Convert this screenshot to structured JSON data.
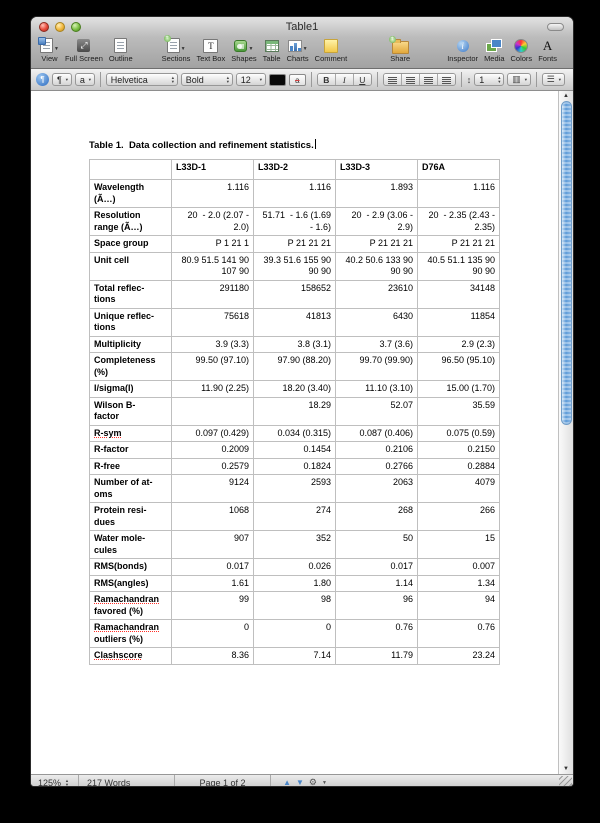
{
  "window": {
    "title": "Table1"
  },
  "toolbar": {
    "items": [
      {
        "label": "View",
        "icon": "view-icon",
        "has_menu": true
      },
      {
        "label": "Full Screen",
        "icon": "full-screen-icon",
        "has_menu": false
      },
      {
        "label": "Outline",
        "icon": "outline-icon",
        "has_menu": false
      },
      {
        "label": "Sections",
        "icon": "sections-icon",
        "has_menu": true
      },
      {
        "label": "Text Box",
        "icon": "text-box-icon",
        "has_menu": false
      },
      {
        "label": "Shapes",
        "icon": "shapes-icon",
        "has_menu": true
      },
      {
        "label": "Table",
        "icon": "table-icon",
        "has_menu": false
      },
      {
        "label": "Charts",
        "icon": "charts-icon",
        "has_menu": true
      },
      {
        "label": "Comment",
        "icon": "comment-icon",
        "has_menu": false
      },
      {
        "label": "Share",
        "icon": "share-icon",
        "has_menu": false
      },
      {
        "label": "Inspector",
        "icon": "inspector-icon",
        "has_menu": false
      },
      {
        "label": "Media",
        "icon": "media-icon",
        "has_menu": false
      },
      {
        "label": "Colors",
        "icon": "colors-icon",
        "has_menu": false
      },
      {
        "label": "Fonts",
        "icon": "fonts-icon",
        "has_menu": false
      }
    ]
  },
  "format_bar": {
    "paragraph_style": "¶",
    "character_style": "a",
    "font_family": "Helvetica",
    "typeface": "Bold",
    "font_size": "12",
    "bold_label": "B",
    "italic_label": "I",
    "underline_label": "U",
    "line_spacing_value": "1"
  },
  "document": {
    "title": "Table 1.  Data collection and refinement statistics.",
    "table": {
      "columns": [
        "",
        "L33D-1",
        "L33D-2",
        "L33D-3",
        "D76A"
      ],
      "rows": [
        {
          "label": [
            "Wavelength",
            "(Ã…)"
          ],
          "underline_line": null,
          "values": [
            "1.116",
            "1.116",
            "1.893",
            "1.116"
          ]
        },
        {
          "label": [
            "Resolution",
            "range (Ã…)"
          ],
          "underline_line": null,
          "values": [
            "20  - 2.0 (2.07 -\n2.0)",
            "51.71  - 1.6 (1.69\n- 1.6)",
            "20  - 2.9 (3.06 -\n2.9)",
            "20  - 2.35 (2.43 -\n2.35)"
          ]
        },
        {
          "label": [
            "Space group"
          ],
          "underline_line": null,
          "values": [
            "P 1 21 1",
            "P 21 21 21",
            "P 21 21 21",
            "P 21 21 21"
          ]
        },
        {
          "label": [
            "Unit cell"
          ],
          "underline_line": null,
          "values": [
            "80.9 51.5 141 90\n107 90",
            "39.3 51.6 155 90\n90 90",
            "40.2 50.6 133 90\n90 90",
            "40.5 51.1 135 90\n90 90"
          ]
        },
        {
          "label": [
            "Total reflec-",
            "tions"
          ],
          "underline_line": null,
          "values": [
            "291180",
            "158652",
            "23610",
            "34148"
          ]
        },
        {
          "label": [
            "Unique reflec-",
            "tions"
          ],
          "underline_line": null,
          "values": [
            "75618",
            "41813",
            "6430",
            "11854"
          ]
        },
        {
          "label": [
            "Multiplicity"
          ],
          "underline_line": null,
          "values": [
            "3.9 (3.3)",
            "3.8 (3.1)",
            "3.7 (3.6)",
            "2.9 (2.3)"
          ]
        },
        {
          "label": [
            "Completeness",
            "(%)"
          ],
          "underline_line": null,
          "values": [
            "99.50 (97.10)",
            "97.90 (88.20)",
            "99.70 (99.90)",
            "96.50 (95.10)"
          ]
        },
        {
          "label": [
            "I/sigma(I)"
          ],
          "underline_line": null,
          "values": [
            "11.90 (2.25)",
            "18.20 (3.40)",
            "11.10 (3.10)",
            "15.00 (1.70)"
          ]
        },
        {
          "label": [
            "Wilson B-",
            "factor"
          ],
          "underline_line": null,
          "values": [
            "",
            "18.29",
            "52.07",
            "35.59"
          ]
        },
        {
          "label": [
            "R-sym"
          ],
          "underline_line": 0,
          "values": [
            "0.097 (0.429)",
            "0.034 (0.315)",
            "0.087 (0.406)",
            "0.075 (0.59)"
          ]
        },
        {
          "label": [
            "R-factor"
          ],
          "underline_line": null,
          "values": [
            "0.2009",
            "0.1454",
            "0.2106",
            "0.2150"
          ]
        },
        {
          "label": [
            "R-free"
          ],
          "underline_line": null,
          "values": [
            "0.2579",
            "0.1824",
            "0.2766",
            "0.2884"
          ]
        },
        {
          "label": [
            "Number of at-",
            "oms"
          ],
          "underline_line": null,
          "values": [
            "9124",
            "2593",
            "2063",
            "4079"
          ]
        },
        {
          "label": [
            "Protein resi-",
            "dues"
          ],
          "underline_line": null,
          "values": [
            "1068",
            "274",
            "268",
            "266"
          ]
        },
        {
          "label": [
            "Water mole-",
            "cules"
          ],
          "underline_line": null,
          "values": [
            "907",
            "352",
            "50",
            "15"
          ]
        },
        {
          "label": [
            "RMS(bonds)"
          ],
          "underline_line": null,
          "values": [
            "0.017",
            "0.026",
            "0.017",
            "0.007"
          ]
        },
        {
          "label": [
            "RMS(angles)"
          ],
          "underline_line": null,
          "values": [
            "1.61",
            "1.80",
            "1.14",
            "1.34"
          ]
        },
        {
          "label": [
            "Ramachandran",
            "favored (%)"
          ],
          "underline_line": 0,
          "values": [
            "99",
            "98",
            "96",
            "94"
          ]
        },
        {
          "label": [
            "Ramachandran",
            "outliers (%)"
          ],
          "underline_line": 0,
          "values": [
            "0",
            "0",
            "0.76",
            "0.76"
          ]
        },
        {
          "label": [
            "Clashscore"
          ],
          "underline_line": 0,
          "values": [
            "8.36",
            "7.14",
            "11.79",
            "23.24"
          ]
        }
      ]
    }
  },
  "status_bar": {
    "zoom_level": "125%",
    "word_count": "217 Words",
    "page_indicator": "Page 1 of 2"
  },
  "colors": {
    "scrollbar_thumb": "#5e9bd8",
    "misspell_underline": "#ff3028",
    "table_border": "#bfbfbf"
  }
}
